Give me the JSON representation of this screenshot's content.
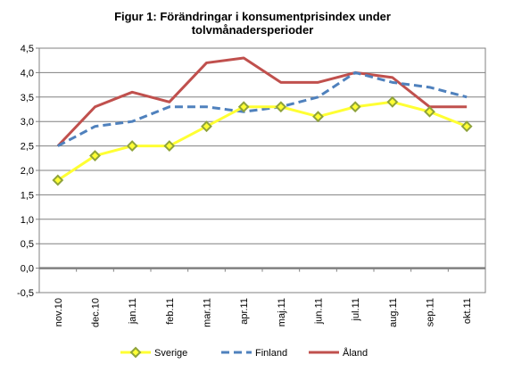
{
  "chart_data": {
    "type": "line",
    "title_lines": [
      "Figur 1: Förändringar i konsumentprisindex  under",
      "tolvmånadersperioder"
    ],
    "categories": [
      "nov.10",
      "dec.10",
      "jan.11",
      "feb.11",
      "mar.11",
      "apr.11",
      "maj.11",
      "jun.11",
      "jul.11",
      "aug.11",
      "sep.11",
      "okt.11"
    ],
    "ylim": [
      -0.5,
      4.5
    ],
    "yticks": [
      -0.5,
      0.0,
      0.5,
      1.0,
      1.5,
      2.0,
      2.5,
      3.0,
      3.5,
      4.0,
      4.5
    ],
    "ytick_labels": [
      "-0,5",
      "0,0",
      "0,5",
      "1,0",
      "1,5",
      "2,0",
      "2,5",
      "3,0",
      "3,5",
      "4,0",
      "4,5"
    ],
    "grid": true,
    "legend_position": "bottom",
    "series": [
      {
        "name": "Sverige",
        "values": [
          1.8,
          2.3,
          2.5,
          2.5,
          2.9,
          3.3,
          3.3,
          3.1,
          3.3,
          3.4,
          3.2,
          2.9
        ],
        "color": "#ffff33",
        "marker_color": "#8fa33a",
        "style": "solid-markers"
      },
      {
        "name": "Finland",
        "values": [
          2.5,
          2.9,
          3.0,
          3.3,
          3.3,
          3.2,
          3.3,
          3.5,
          4.0,
          3.8,
          3.7,
          3.5
        ],
        "color": "#4f81bd",
        "style": "dashed"
      },
      {
        "name": "Åland",
        "values": [
          2.5,
          3.3,
          3.6,
          3.4,
          4.2,
          4.3,
          3.8,
          3.8,
          4.0,
          3.9,
          3.3,
          3.3
        ],
        "color": "#c0504d",
        "style": "solid"
      }
    ]
  }
}
